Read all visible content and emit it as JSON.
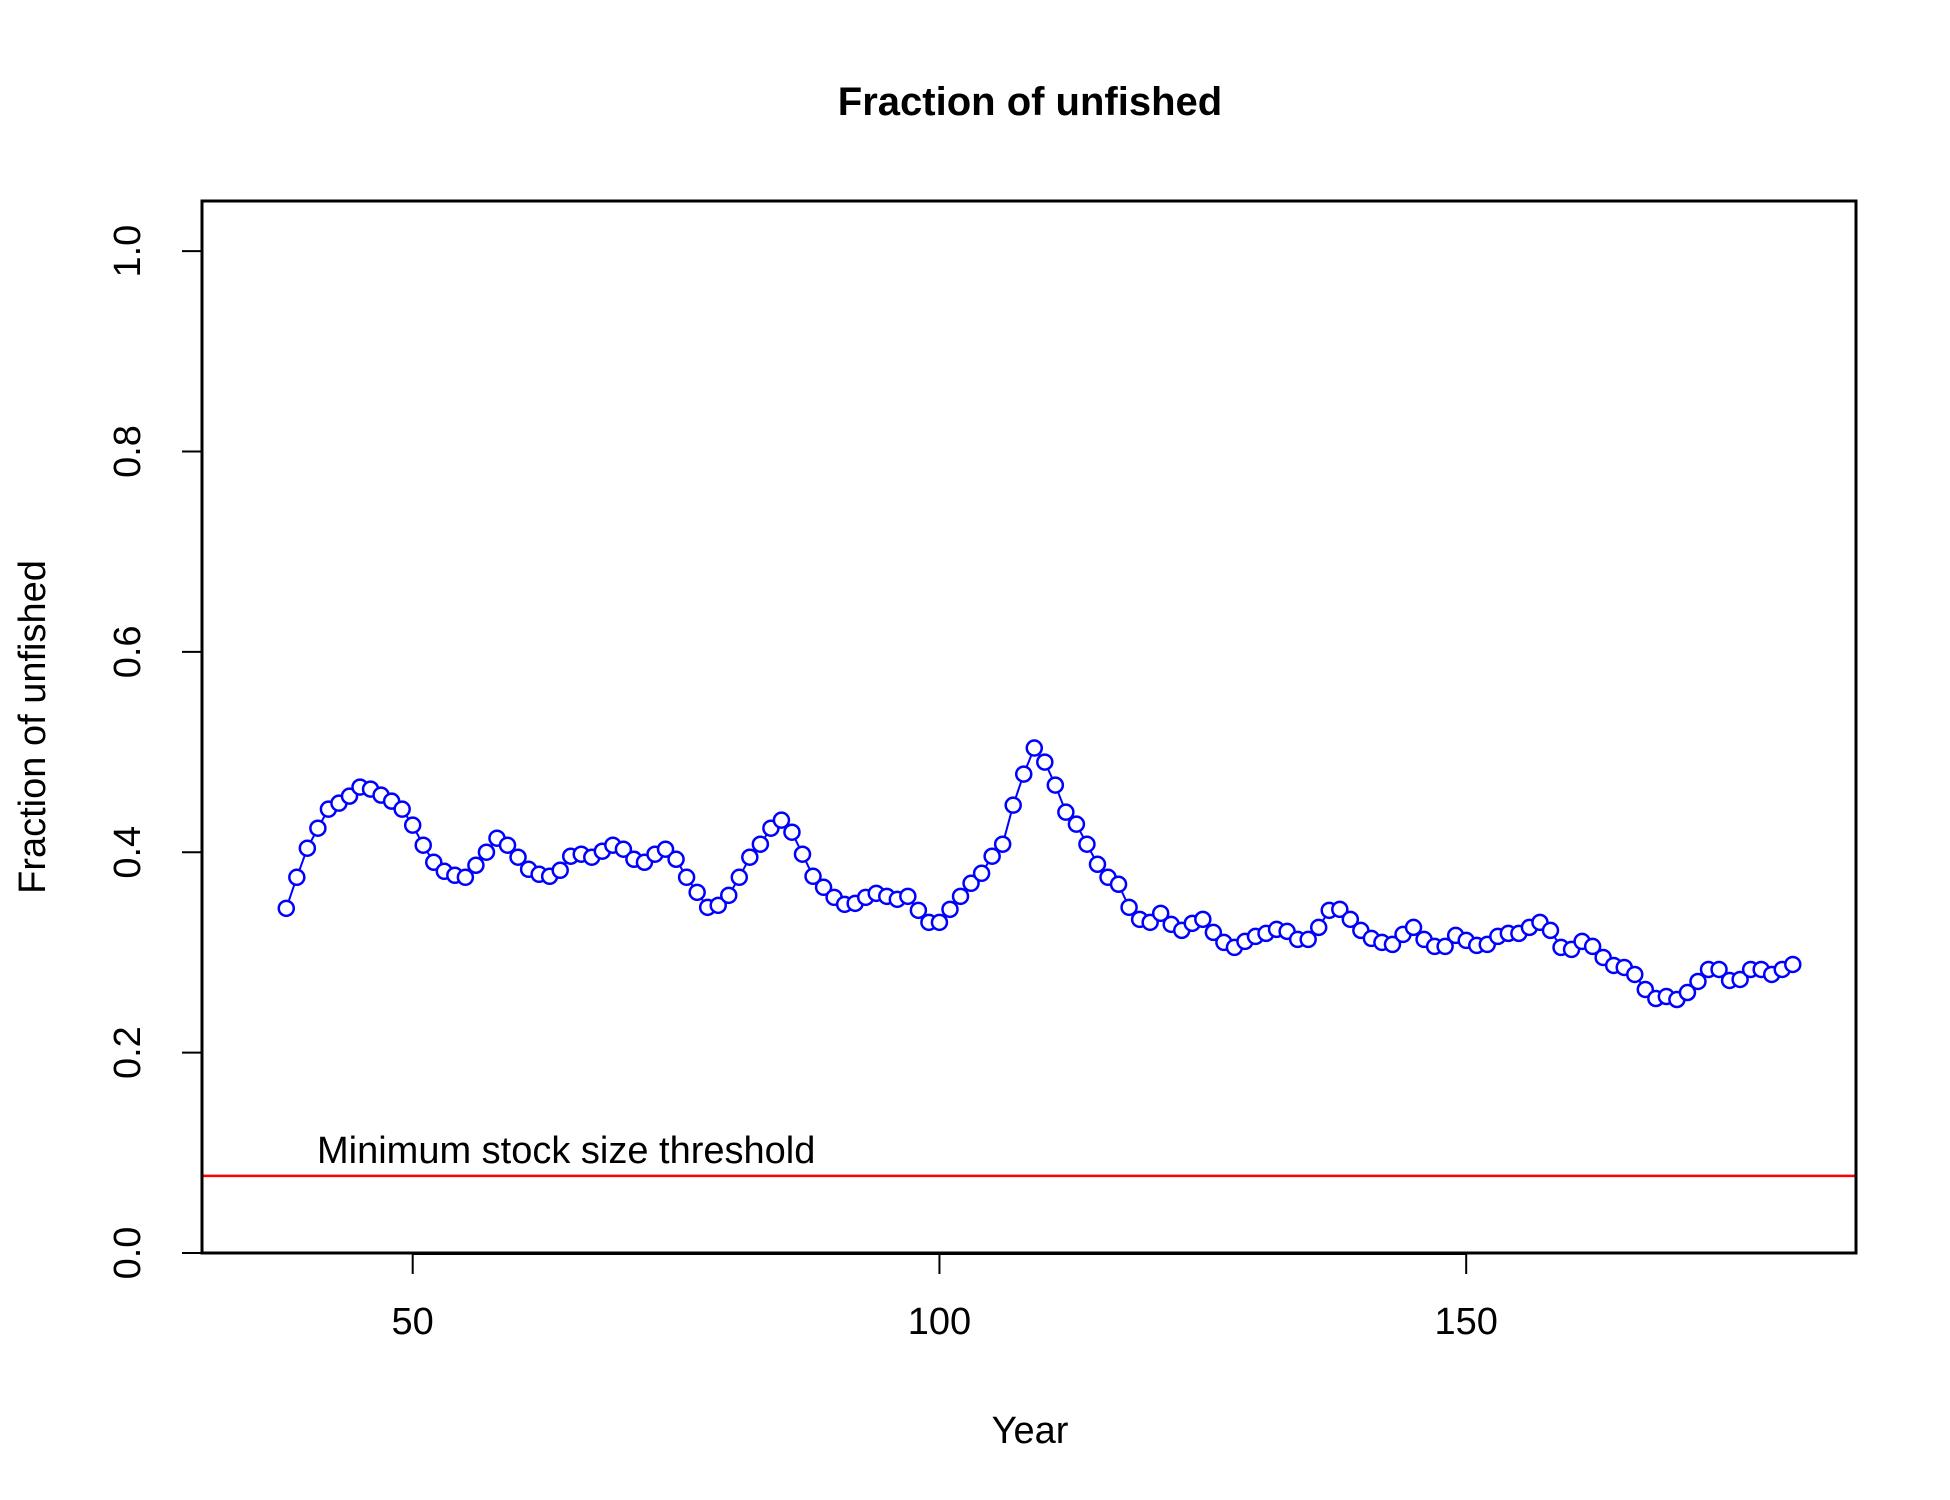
{
  "chart_data": {
    "type": "line",
    "title": "Fraction of unfished",
    "xlabel": "Year",
    "ylabel": "Fraction of unfished",
    "xlim": [
      30,
      187
    ],
    "ylim": [
      0,
      1.05
    ],
    "xticks": [
      50,
      100,
      150
    ],
    "yticks": [
      0.0,
      0.2,
      0.4,
      0.6,
      0.8,
      1.0
    ],
    "ytick_labels": [
      "0.0",
      "0.2",
      "0.4",
      "0.6",
      "0.8",
      "1.0"
    ],
    "grid": false,
    "series": [
      {
        "color": "#0000ff",
        "marker": "open-circle",
        "x": [
          38,
          39,
          40,
          41,
          42,
          43,
          44,
          45,
          46,
          47,
          48,
          49,
          50,
          51,
          52,
          53,
          54,
          55,
          56,
          57,
          58,
          59,
          60,
          61,
          62,
          63,
          64,
          65,
          66,
          67,
          68,
          69,
          70,
          71,
          72,
          73,
          74,
          75,
          76,
          77,
          78,
          79,
          80,
          81,
          82,
          83,
          84,
          85,
          86,
          87,
          88,
          89,
          90,
          91,
          92,
          93,
          94,
          95,
          96,
          97,
          98,
          99,
          100,
          101,
          102,
          103,
          104,
          105,
          106,
          107,
          108,
          109,
          110,
          111,
          112,
          113,
          114,
          115,
          116,
          117,
          118,
          119,
          120,
          121,
          122,
          123,
          124,
          125,
          126,
          127,
          128,
          129,
          130,
          131,
          132,
          133,
          134,
          135,
          136,
          137,
          138,
          139,
          140,
          141,
          142,
          143,
          144,
          145,
          146,
          147,
          148,
          149,
          150,
          151,
          152,
          153,
          154,
          155,
          156,
          157,
          158,
          159,
          160,
          161,
          162,
          163,
          164,
          165,
          166,
          167,
          168,
          169,
          170,
          171,
          172,
          173,
          174,
          175,
          176,
          177,
          178,
          179,
          180,
          181
        ],
        "y": [
          0.344,
          0.375,
          0.404,
          0.424,
          0.443,
          0.449,
          0.456,
          0.465,
          0.463,
          0.457,
          0.451,
          0.443,
          0.427,
          0.407,
          0.39,
          0.381,
          0.377,
          0.375,
          0.387,
          0.4,
          0.414,
          0.407,
          0.395,
          0.383,
          0.378,
          0.376,
          0.382,
          0.396,
          0.398,
          0.395,
          0.401,
          0.407,
          0.403,
          0.393,
          0.39,
          0.398,
          0.403,
          0.393,
          0.375,
          0.36,
          0.345,
          0.347,
          0.357,
          0.375,
          0.395,
          0.408,
          0.424,
          0.432,
          0.42,
          0.398,
          0.376,
          0.365,
          0.355,
          0.348,
          0.349,
          0.355,
          0.359,
          0.356,
          0.353,
          0.356,
          0.342,
          0.33,
          0.33,
          0.343,
          0.356,
          0.369,
          0.379,
          0.396,
          0.408,
          0.447,
          0.478,
          0.504,
          0.49,
          0.467,
          0.44,
          0.428,
          0.408,
          0.388,
          0.375,
          0.368,
          0.345,
          0.333,
          0.33,
          0.339,
          0.328,
          0.322,
          0.329,
          0.333,
          0.32,
          0.31,
          0.305,
          0.311,
          0.316,
          0.319,
          0.323,
          0.321,
          0.313,
          0.313,
          0.325,
          0.342,
          0.343,
          0.333,
          0.322,
          0.314,
          0.31,
          0.308,
          0.318,
          0.325,
          0.313,
          0.306,
          0.306,
          0.317,
          0.312,
          0.307,
          0.308,
          0.316,
          0.319,
          0.319,
          0.325,
          0.33,
          0.322,
          0.305,
          0.303,
          0.311,
          0.306,
          0.295,
          0.287,
          0.285,
          0.278,
          0.263,
          0.254,
          0.256,
          0.253,
          0.26,
          0.271,
          0.283,
          0.283,
          0.272,
          0.273,
          0.283,
          0.283,
          0.278,
          0.283,
          0.288
        ]
      }
    ],
    "reference_lines": [
      {
        "y": 0.077,
        "color": "#ff0000",
        "label": "Minimum stock size threshold"
      }
    ]
  }
}
